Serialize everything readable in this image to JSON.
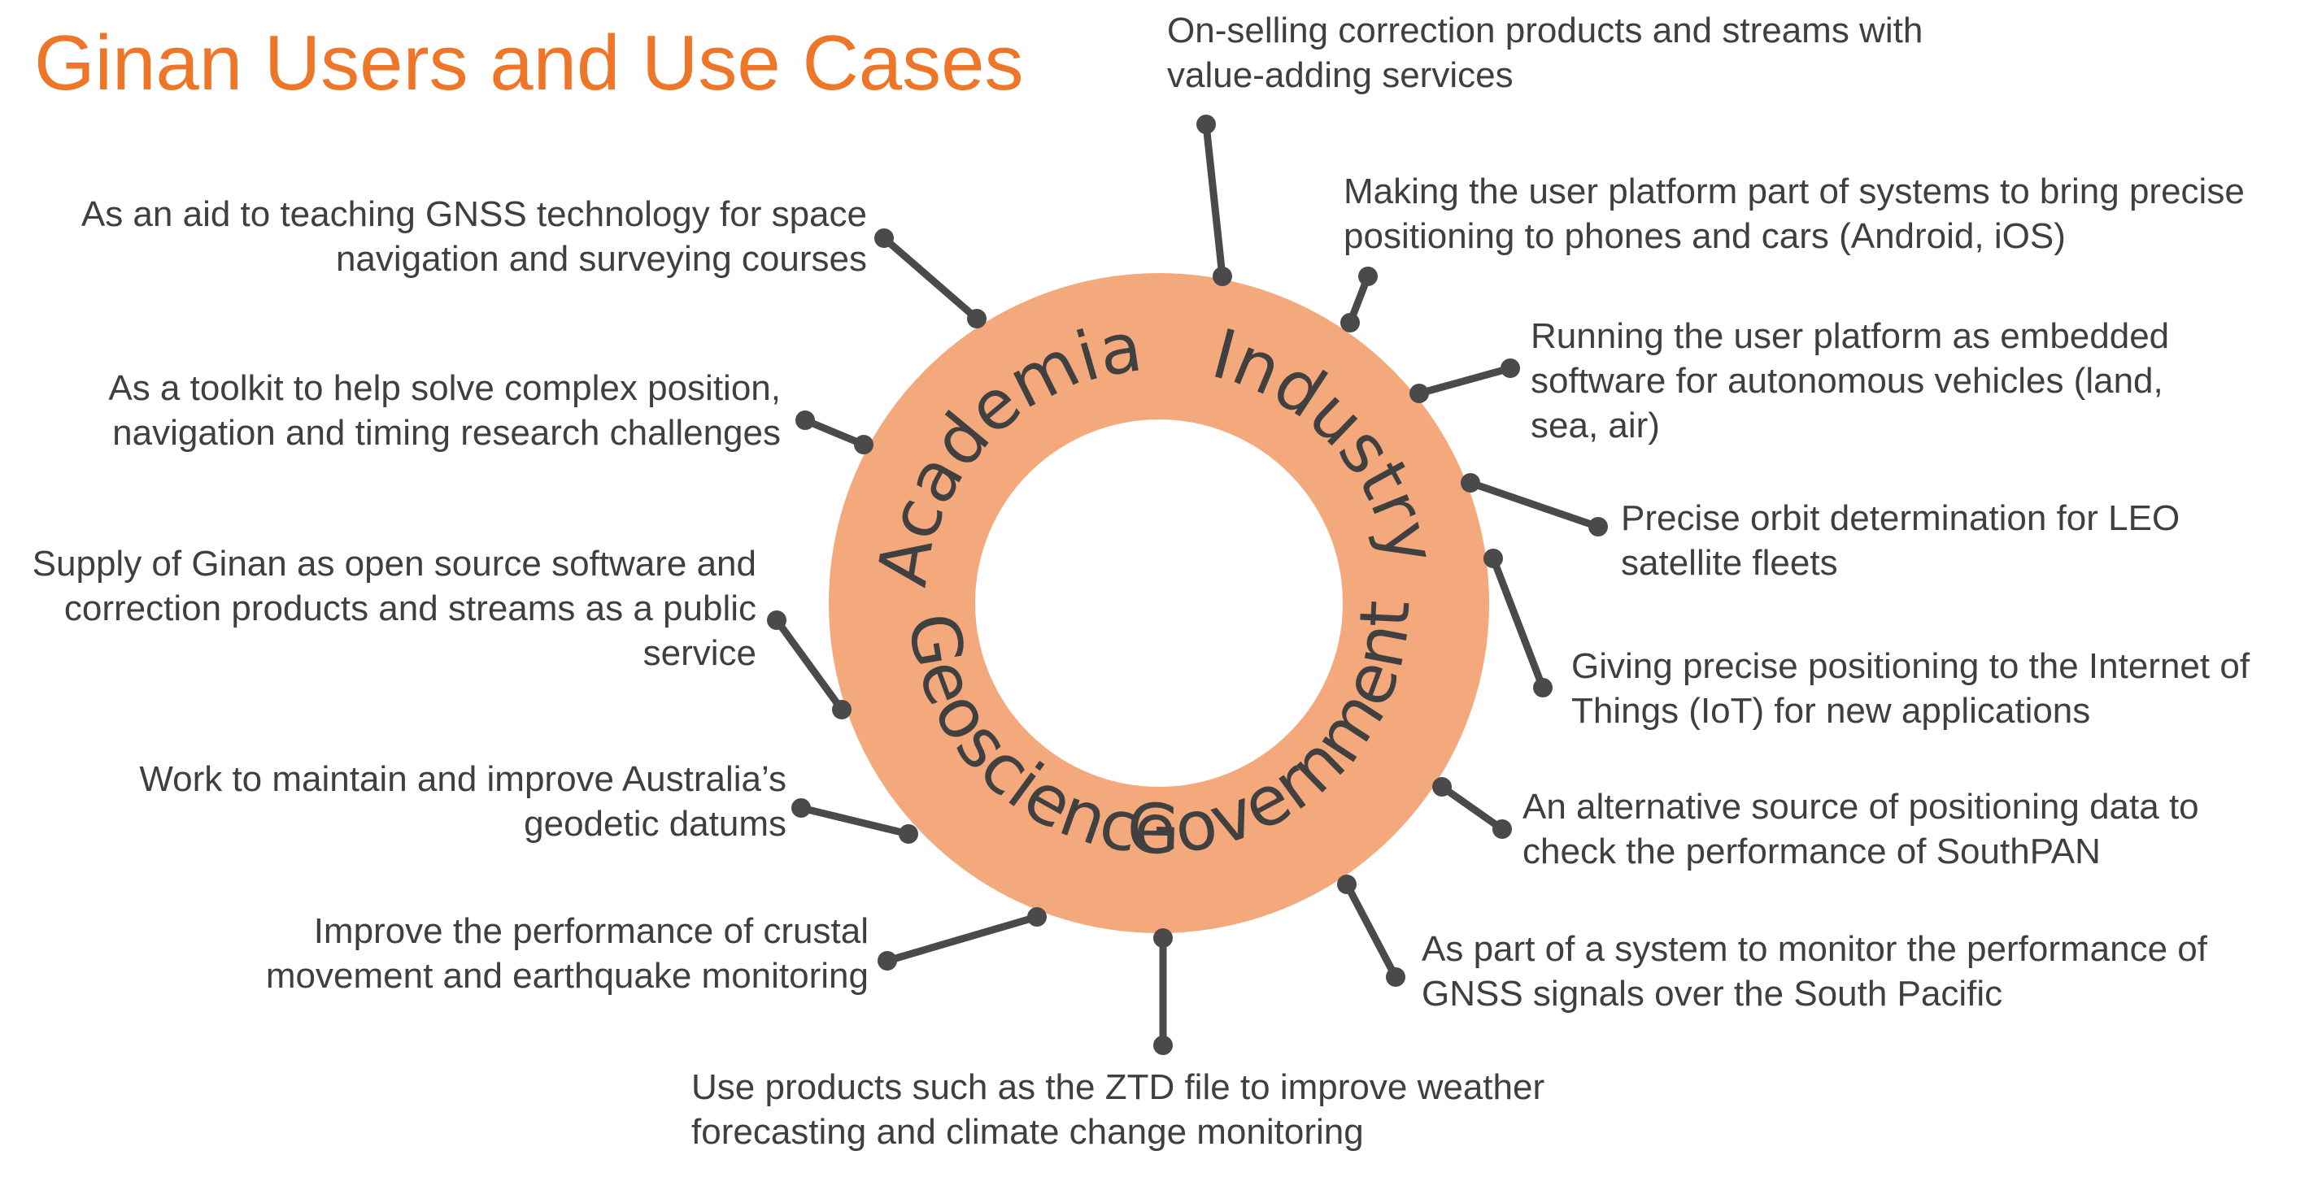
{
  "title": "Ginan Users and Use Cases",
  "colors": {
    "title": "#ED7628",
    "ring": "#F4A97D",
    "text": "#3F3F3F",
    "connector": "#4A4A4A",
    "background": "#FFFFFF"
  },
  "sectors": [
    {
      "id": "academia",
      "label": "Academia"
    },
    {
      "id": "industry",
      "label": "Industry"
    },
    {
      "id": "government",
      "label": "Government"
    },
    {
      "id": "geoscience",
      "label": "Geoscience"
    }
  ],
  "use_cases": [
    {
      "id": "onselling",
      "lines": [
        "On-selling correction products and streams with",
        "value-adding services"
      ]
    },
    {
      "id": "user-platform-phones",
      "lines": [
        "Making the user platform part of systems to bring precise",
        "positioning to phones and cars (Android, iOS)"
      ]
    },
    {
      "id": "embedded-autonomous",
      "lines": [
        "Running the user platform as embedded",
        "software for autonomous vehicles (land,",
        "sea, air)"
      ]
    },
    {
      "id": "leo-orbit",
      "lines": [
        "Precise orbit determination for LEO",
        "satellite fleets"
      ]
    },
    {
      "id": "iot",
      "lines": [
        "Giving precise positioning to the Internet of",
        "Things (IoT) for new applications"
      ]
    },
    {
      "id": "southpan",
      "lines": [
        "An alternative source of positioning data to",
        "check the performance of SouthPAN"
      ]
    },
    {
      "id": "south-pacific",
      "lines": [
        "As part of a system to monitor the performance of",
        "GNSS signals over the South Pacific"
      ]
    },
    {
      "id": "weather",
      "lines": [
        "Use products such as the ZTD file to improve weather",
        "forecasting and climate change monitoring"
      ]
    },
    {
      "id": "crustal",
      "lines": [
        "Improve the performance of crustal",
        "movement and earthquake monitoring"
      ]
    },
    {
      "id": "datums",
      "lines": [
        "Work to maintain and improve Australia’s",
        "geodetic datums"
      ]
    },
    {
      "id": "open-source",
      "lines": [
        "Supply of Ginan as open source software and",
        "correction products and streams as a public",
        "service"
      ]
    },
    {
      "id": "toolkit",
      "lines": [
        "As a toolkit to help solve complex position,",
        "navigation and timing research challenges"
      ]
    },
    {
      "id": "teaching",
      "lines": [
        "As an aid to teaching GNSS technology for space",
        "navigation and surveying courses"
      ]
    }
  ]
}
